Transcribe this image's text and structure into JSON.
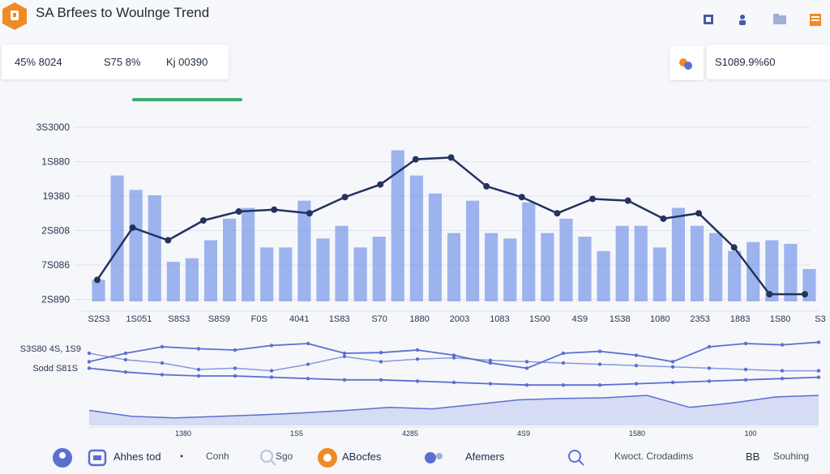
{
  "header": {
    "title": "SA Brfees to Woulnge Trend",
    "icons": [
      "logo-badge-icon",
      "music-icon",
      "user-icon",
      "folder-icon",
      "notebook-icon"
    ]
  },
  "stats": {
    "stat1": "45% 8024",
    "stat2": "S75 8%",
    "stat3": "Kj 00390"
  },
  "right_card": {
    "value": "S1089.9%60",
    "icon": "sparkle-icon"
  },
  "footer": {
    "items": [
      "Ahhes tod",
      "Conh",
      "Sgo",
      "ABocfes",
      "Afemers",
      "Kwoct. Crodadims",
      "Souhing"
    ],
    "b_label": "BB"
  },
  "colors": {
    "bar": "#7f9ce8",
    "line_main": "#24325e",
    "line_secondary": "#5b6fd0",
    "accent_orange": "#f08a24",
    "accent_green": "#3ea86b"
  },
  "chart_data": [
    {
      "type": "bar",
      "title": "",
      "y_ticks": [
        "3S3000",
        "1S880",
        "19380",
        "2S808",
        "7S086",
        "2S890"
      ],
      "x_ticks": [
        "S2S3",
        "1S051",
        "S8S3",
        "S8S9",
        "F0S",
        "4041",
        "1S83",
        "S70",
        "1880",
        "2003",
        "1083",
        "1S00",
        "4S9",
        "1S38",
        "1080",
        "2353",
        "1883",
        "1S80",
        "S3"
      ],
      "series": [
        {
          "values": [
            0.12,
            0.7,
            0.62,
            0.59,
            0.22,
            0.24,
            0.34,
            0.46,
            0.52,
            0.3,
            0.3,
            0.56,
            0.35,
            0.42,
            0.3,
            0.36,
            0.84,
            0.7,
            0.6,
            0.38,
            0.56,
            0.38,
            0.35,
            0.55,
            0.38,
            0.46,
            0.36,
            0.28,
            0.42,
            0.42,
            0.3,
            0.52,
            0.42,
            0.38,
            0.28,
            0.33,
            0.34,
            0.32,
            0.18
          ]
        }
      ],
      "line_values": [
        0.12,
        0.41,
        0.34,
        0.45,
        0.5,
        0.51,
        0.49,
        0.58,
        0.65,
        0.79,
        0.8,
        0.64,
        0.58,
        0.49,
        0.57,
        0.56,
        0.46,
        0.49,
        0.3,
        0.04,
        0.04
      ]
    },
    {
      "type": "line",
      "y_ticks": [
        "S3S80 4S, 1S9",
        "Sodd S81S"
      ],
      "series": [
        {
          "values": [
            0.42,
            0.55,
            0.65,
            0.62,
            0.6,
            0.67,
            0.7,
            0.55,
            0.56,
            0.6,
            0.52,
            0.4,
            0.32,
            0.55,
            0.58,
            0.52,
            0.42,
            0.65,
            0.7,
            0.68,
            0.72
          ]
        },
        {
          "values": [
            0.55,
            0.45,
            0.4,
            0.3,
            0.32,
            0.28,
            0.38,
            0.5,
            0.42,
            0.46,
            0.48,
            0.44,
            0.42,
            0.4,
            0.38,
            0.36,
            0.34,
            0.32,
            0.3,
            0.28,
            0.28
          ]
        },
        {
          "values": [
            0.32,
            0.26,
            0.22,
            0.2,
            0.2,
            0.18,
            0.16,
            0.14,
            0.14,
            0.12,
            0.1,
            0.08,
            0.06,
            0.06,
            0.06,
            0.08,
            0.1,
            0.12,
            0.14,
            0.16,
            0.18
          ]
        }
      ],
      "area_values": [
        0.5,
        0.3,
        0.25,
        0.3,
        0.35,
        0.42,
        0.5,
        0.6,
        0.55,
        0.7,
        0.85,
        0.9,
        0.92,
        1.0,
        0.6,
        0.75,
        0.95,
        1.0
      ],
      "x_ticks": [
        "1380",
        "1S5",
        "4285",
        "4S9",
        "1580",
        "100"
      ]
    }
  ]
}
